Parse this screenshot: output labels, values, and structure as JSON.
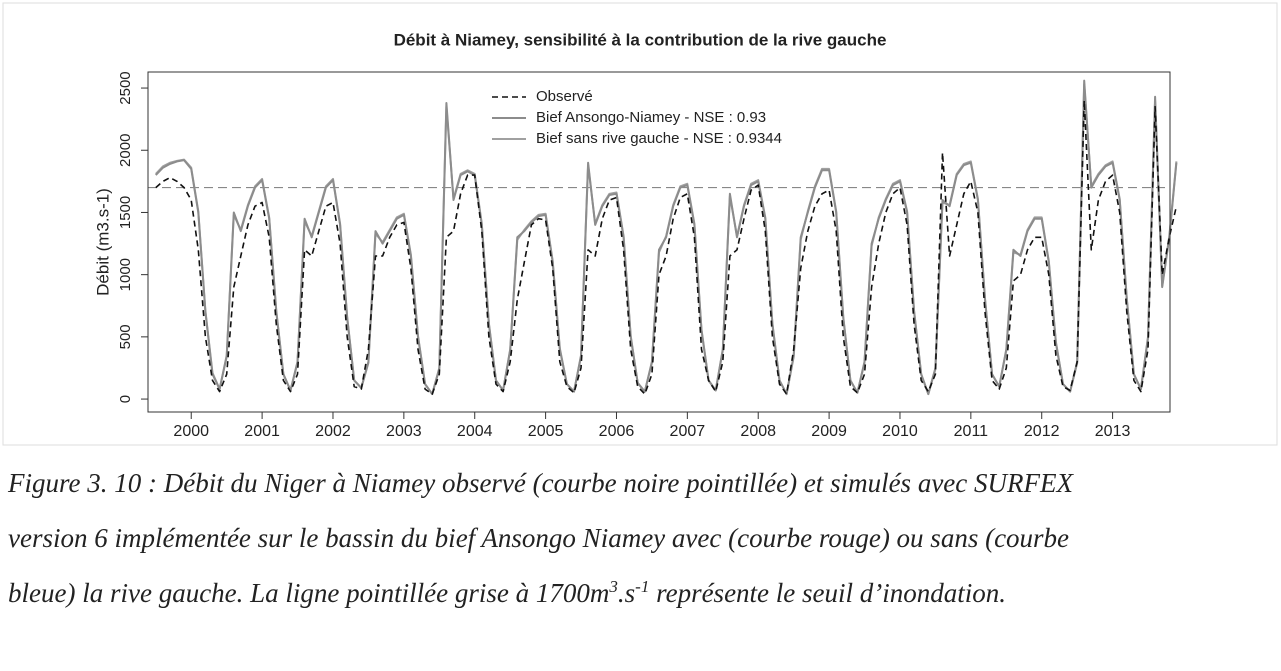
{
  "chart_data": {
    "type": "line",
    "title": "Débit à Niamey, sensibilité à la contribution de la rive gauche",
    "y_label": "Débit (m3.s-1)",
    "xlim": [
      1999.39,
      2013.81
    ],
    "xticks": [
      2000,
      2001,
      2002,
      2003,
      2004,
      2005,
      2006,
      2007,
      2008,
      2009,
      2010,
      2011,
      2012,
      2013
    ],
    "ylim": [
      -104,
      2629
    ],
    "yticks": [
      0,
      500,
      1000,
      1500,
      2000,
      2500
    ],
    "threshold": 1700,
    "threshold_color": "#888888",
    "legend": "top",
    "x": [
      1999.5,
      1999.6,
      1999.7,
      1999.8,
      1999.9,
      2000.0,
      2000.1,
      2000.2,
      2000.3,
      2000.4,
      2000.5,
      2000.6,
      2000.7,
      2000.8,
      2000.9,
      2001.0,
      2001.1,
      2001.2,
      2001.3,
      2001.4,
      2001.5,
      2001.6,
      2001.7,
      2001.8,
      2001.9,
      2002.0,
      2002.1,
      2002.2,
      2002.3,
      2002.4,
      2002.5,
      2002.6,
      2002.7,
      2002.8,
      2002.9,
      2003.0,
      2003.1,
      2003.2,
      2003.3,
      2003.4,
      2003.5,
      2003.6,
      2003.7,
      2003.8,
      2003.9,
      2004.0,
      2004.1,
      2004.2,
      2004.3,
      2004.4,
      2004.5,
      2004.6,
      2004.7,
      2004.8,
      2004.9,
      2005.0,
      2005.1,
      2005.2,
      2005.3,
      2005.4,
      2005.5,
      2005.6,
      2005.7,
      2005.8,
      2005.9,
      2006.0,
      2006.1,
      2006.2,
      2006.3,
      2006.4,
      2006.5,
      2006.6,
      2006.7,
      2006.8,
      2006.9,
      2007.0,
      2007.1,
      2007.2,
      2007.3,
      2007.4,
      2007.5,
      2007.6,
      2007.7,
      2007.8,
      2007.9,
      2008.0,
      2008.1,
      2008.2,
      2008.3,
      2008.4,
      2008.5,
      2008.6,
      2008.7,
      2008.8,
      2008.9,
      2009.0,
      2009.1,
      2009.2,
      2009.3,
      2009.4,
      2009.5,
      2009.6,
      2009.7,
      2009.8,
      2009.9,
      2010.0,
      2010.1,
      2010.2,
      2010.3,
      2010.4,
      2010.5,
      2010.6,
      2010.7,
      2010.8,
      2010.9,
      2011.0,
      2011.1,
      2011.2,
      2011.3,
      2011.4,
      2011.5,
      2011.6,
      2011.7,
      2011.8,
      2011.9,
      2012.0,
      2012.1,
      2012.2,
      2012.3,
      2012.4,
      2012.5,
      2012.6,
      2012.7,
      2012.8,
      2012.9,
      2013.0,
      2013.1,
      2013.2,
      2013.3,
      2013.4,
      2013.5,
      2013.6,
      2013.7,
      2013.8,
      2013.9
    ],
    "series": [
      {
        "name": "Observé",
        "color": "#111111",
        "dashed": true,
        "values": [
          1700,
          1750,
          1780,
          1750,
          1700,
          1600,
          1200,
          500,
          150,
          60,
          200,
          900,
          1150,
          1400,
          1550,
          1580,
          1300,
          600,
          150,
          60,
          200,
          1200,
          1150,
          1350,
          1550,
          1580,
          1250,
          500,
          100,
          80,
          400,
          1150,
          1150,
          1300,
          1400,
          1420,
          1050,
          400,
          80,
          40,
          200,
          1300,
          1350,
          1650,
          1800,
          1800,
          1350,
          500,
          120,
          60,
          300,
          800,
          1100,
          1400,
          1450,
          1440,
          1050,
          300,
          100,
          50,
          250,
          1200,
          1150,
          1450,
          1600,
          1620,
          1200,
          400,
          100,
          40,
          200,
          1000,
          1150,
          1450,
          1620,
          1650,
          1300,
          400,
          150,
          60,
          300,
          1150,
          1200,
          1450,
          1680,
          1720,
          1350,
          500,
          120,
          40,
          400,
          1050,
          1350,
          1550,
          1650,
          1680,
          1350,
          500,
          100,
          50,
          200,
          900,
          1250,
          1500,
          1650,
          1700,
          1400,
          600,
          150,
          60,
          200,
          1980,
          1150,
          1400,
          1650,
          1750,
          1500,
          700,
          150,
          80,
          250,
          950,
          1000,
          1200,
          1300,
          1300,
          1000,
          350,
          100,
          70,
          300,
          2400,
          1200,
          1600,
          1750,
          1800,
          1500,
          700,
          150,
          60,
          400,
          2350,
          1000,
          1300,
          1550
        ]
      },
      {
        "name": "Bief Ansongo-Niamey - NSE : 0.93",
        "color": "#8c8c8c",
        "dashed": false,
        "values": [
          1800,
          1860,
          1890,
          1910,
          1920,
          1850,
          1500,
          700,
          200,
          80,
          350,
          1500,
          1350,
          1550,
          1700,
          1760,
          1450,
          700,
          200,
          70,
          300,
          1450,
          1300,
          1500,
          1700,
          1760,
          1400,
          650,
          150,
          90,
          300,
          1350,
          1250,
          1350,
          1450,
          1480,
          1150,
          500,
          120,
          40,
          250,
          2380,
          1600,
          1800,
          1830,
          1800,
          1400,
          600,
          150,
          70,
          400,
          1300,
          1350,
          1420,
          1470,
          1480,
          1100,
          400,
          120,
          60,
          350,
          1900,
          1400,
          1550,
          1640,
          1650,
          1300,
          500,
          130,
          60,
          300,
          1200,
          1300,
          1550,
          1700,
          1720,
          1400,
          550,
          150,
          70,
          400,
          1650,
          1300,
          1550,
          1720,
          1750,
          1450,
          600,
          150,
          40,
          350,
          1300,
          1500,
          1700,
          1840,
          1840,
          1500,
          650,
          150,
          50,
          300,
          1250,
          1450,
          1600,
          1720,
          1750,
          1500,
          700,
          200,
          40,
          250,
          1600,
          1550,
          1800,
          1880,
          1900,
          1600,
          800,
          200,
          100,
          400,
          1200,
          1150,
          1350,
          1450,
          1450,
          1100,
          450,
          120,
          60,
          300,
          2560,
          1700,
          1800,
          1870,
          1900,
          1600,
          800,
          200,
          80,
          500,
          2430,
          900,
          1300,
          1900
        ]
      },
      {
        "name": "Bief sans rive gauche - NSE : 0.9344",
        "color": "#a0a0a0",
        "dashed": false,
        "values": [
          1810,
          1870,
          1900,
          1915,
          1925,
          1860,
          1510,
          710,
          210,
          80,
          340,
          1480,
          1360,
          1560,
          1710,
          1770,
          1460,
          710,
          200,
          70,
          290,
          1430,
          1310,
          1510,
          1710,
          1770,
          1410,
          660,
          150,
          90,
          290,
          1330,
          1260,
          1360,
          1460,
          1490,
          1160,
          510,
          120,
          40,
          240,
          2350,
          1610,
          1810,
          1840,
          1810,
          1410,
          610,
          150,
          70,
          390,
          1280,
          1360,
          1430,
          1480,
          1490,
          1110,
          410,
          120,
          60,
          340,
          1880,
          1410,
          1560,
          1650,
          1660,
          1310,
          510,
          130,
          60,
          290,
          1180,
          1310,
          1560,
          1710,
          1730,
          1410,
          560,
          150,
          70,
          390,
          1630,
          1310,
          1560,
          1730,
          1760,
          1460,
          610,
          150,
          40,
          340,
          1280,
          1510,
          1710,
          1850,
          1850,
          1510,
          660,
          150,
          50,
          290,
          1230,
          1460,
          1610,
          1730,
          1760,
          1510,
          710,
          200,
          40,
          240,
          1580,
          1560,
          1810,
          1890,
          1910,
          1610,
          810,
          200,
          100,
          390,
          1180,
          1160,
          1360,
          1460,
          1460,
          1110,
          460,
          120,
          60,
          290,
          2530,
          1710,
          1810,
          1880,
          1910,
          1610,
          810,
          200,
          80,
          490,
          2400,
          910,
          1310,
          1910
        ]
      }
    ]
  },
  "caption": {
    "line1": "Figure 3. 10 : Débit du Niger à Niamey observé (courbe noire pointillée) et simulés avec SURFEX",
    "line2": "version 6 implémentée sur le bassin du bief Ansongo Niamey avec (courbe rouge) ou sans (courbe",
    "line3": [
      "bleue) la rive gauche. La ligne pointillée grise à 1700m",
      "3",
      ".s",
      "-1",
      " représente le seuil d’inondation."
    ]
  }
}
